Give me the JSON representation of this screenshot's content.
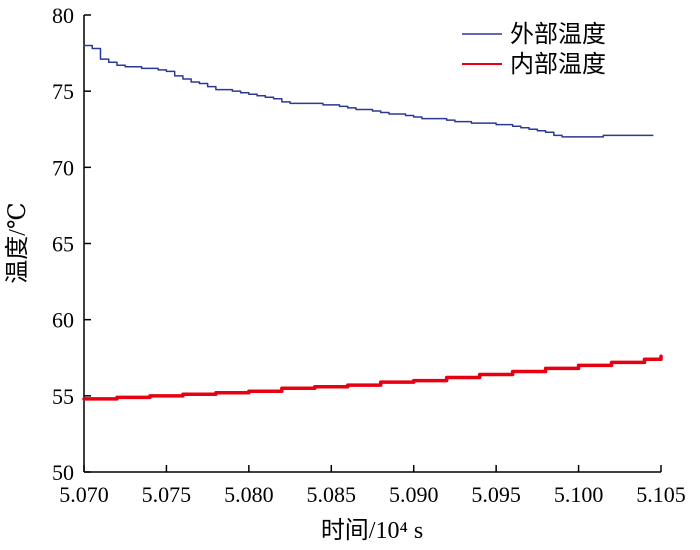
{
  "chart_data": {
    "type": "line",
    "title": "",
    "xlabel": "时间/10⁴ s",
    "ylabel": "温度/℃",
    "xlim": [
      5.07,
      5.105
    ],
    "ylim": [
      50,
      80
    ],
    "x_ticks": [
      "5.070",
      "5.075",
      "5.080",
      "5.085",
      "5.090",
      "5.095",
      "5.100",
      "5.105"
    ],
    "y_ticks": [
      "50",
      "55",
      "60",
      "65",
      "70",
      "75",
      "80"
    ],
    "grid": false,
    "legend_position": "top-right",
    "series": [
      {
        "name": "外部温度",
        "color": "#2b3990",
        "line_width": 1.5,
        "points": [
          [
            5.07,
            78.0
          ],
          [
            5.0705,
            77.8
          ],
          [
            5.071,
            77.1
          ],
          [
            5.0715,
            76.9
          ],
          [
            5.072,
            76.7
          ],
          [
            5.0725,
            76.6
          ],
          [
            5.073,
            76.6
          ],
          [
            5.0735,
            76.5
          ],
          [
            5.074,
            76.5
          ],
          [
            5.0745,
            76.4
          ],
          [
            5.075,
            76.3
          ],
          [
            5.0755,
            76.0
          ],
          [
            5.076,
            75.8
          ],
          [
            5.0765,
            75.6
          ],
          [
            5.077,
            75.5
          ],
          [
            5.0775,
            75.3
          ],
          [
            5.078,
            75.1
          ],
          [
            5.0785,
            75.1
          ],
          [
            5.079,
            75.0
          ],
          [
            5.0795,
            74.9
          ],
          [
            5.08,
            74.8
          ],
          [
            5.0805,
            74.7
          ],
          [
            5.081,
            74.6
          ],
          [
            5.0815,
            74.5
          ],
          [
            5.082,
            74.3
          ],
          [
            5.0825,
            74.2
          ],
          [
            5.083,
            74.2
          ],
          [
            5.0835,
            74.2
          ],
          [
            5.084,
            74.2
          ],
          [
            5.0845,
            74.1
          ],
          [
            5.085,
            74.1
          ],
          [
            5.0855,
            74.0
          ],
          [
            5.086,
            73.9
          ],
          [
            5.0865,
            73.8
          ],
          [
            5.087,
            73.8
          ],
          [
            5.0875,
            73.7
          ],
          [
            5.088,
            73.6
          ],
          [
            5.0885,
            73.5
          ],
          [
            5.089,
            73.5
          ],
          [
            5.0895,
            73.4
          ],
          [
            5.09,
            73.3
          ],
          [
            5.0905,
            73.2
          ],
          [
            5.091,
            73.2
          ],
          [
            5.0915,
            73.2
          ],
          [
            5.092,
            73.1
          ],
          [
            5.0925,
            73.0
          ],
          [
            5.093,
            73.0
          ],
          [
            5.0935,
            72.9
          ],
          [
            5.094,
            72.9
          ],
          [
            5.0945,
            72.9
          ],
          [
            5.095,
            72.8
          ],
          [
            5.0955,
            72.8
          ],
          [
            5.096,
            72.7
          ],
          [
            5.0965,
            72.6
          ],
          [
            5.097,
            72.5
          ],
          [
            5.0975,
            72.4
          ],
          [
            5.098,
            72.3
          ],
          [
            5.0985,
            72.1
          ],
          [
            5.099,
            72.0
          ],
          [
            5.0995,
            72.0
          ],
          [
            5.1,
            72.0
          ],
          [
            5.1005,
            72.0
          ],
          [
            5.101,
            72.0
          ],
          [
            5.1015,
            72.1
          ],
          [
            5.102,
            72.1
          ],
          [
            5.1025,
            72.1
          ],
          [
            5.103,
            72.1
          ],
          [
            5.1035,
            72.1
          ],
          [
            5.104,
            72.1
          ],
          [
            5.1045,
            72.1
          ]
        ]
      },
      {
        "name": "内部温度",
        "color": "#e60012",
        "line_width": 3.5,
        "points": [
          [
            5.07,
            54.8
          ],
          [
            5.072,
            54.9
          ],
          [
            5.074,
            55.0
          ],
          [
            5.076,
            55.1
          ],
          [
            5.078,
            55.2
          ],
          [
            5.08,
            55.3
          ],
          [
            5.082,
            55.5
          ],
          [
            5.084,
            55.6
          ],
          [
            5.086,
            55.7
          ],
          [
            5.088,
            55.9
          ],
          [
            5.09,
            56.0
          ],
          [
            5.092,
            56.2
          ],
          [
            5.094,
            56.4
          ],
          [
            5.096,
            56.6
          ],
          [
            5.098,
            56.8
          ],
          [
            5.1,
            57.0
          ],
          [
            5.102,
            57.2
          ],
          [
            5.104,
            57.4
          ],
          [
            5.105,
            57.6
          ]
        ]
      }
    ]
  }
}
